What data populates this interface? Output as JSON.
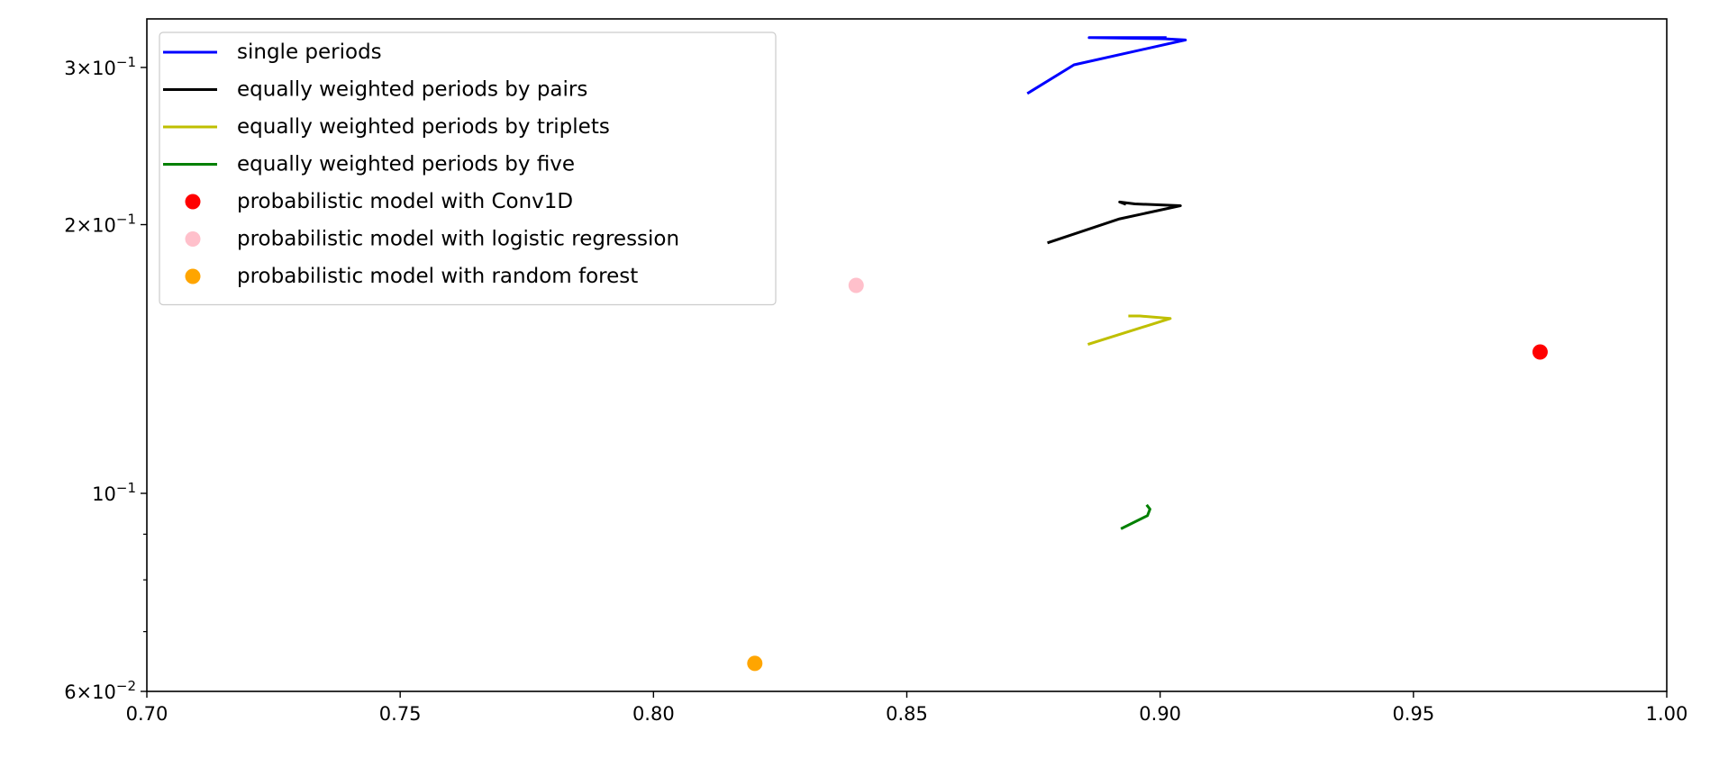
{
  "chart_data": {
    "type": "line",
    "title": "",
    "xlabel": "",
    "ylabel": "",
    "xlim": [
      0.7,
      1.0
    ],
    "ylim": [
      0.06,
      0.34
    ],
    "yscale": "log",
    "grid": false,
    "legend_position": "top-left",
    "x_ticks": [
      {
        "value": 0.7,
        "label": "0.70"
      },
      {
        "value": 0.75,
        "label": "0.75"
      },
      {
        "value": 0.8,
        "label": "0.80"
      },
      {
        "value": 0.85,
        "label": "0.85"
      },
      {
        "value": 0.9,
        "label": "0.90"
      },
      {
        "value": 0.95,
        "label": "0.95"
      },
      {
        "value": 1.0,
        "label": "1.00"
      }
    ],
    "y_ticks": [
      {
        "value": 0.06,
        "mantissa": "6",
        "exponent": "−2"
      },
      {
        "value": 0.1,
        "mantissa": "",
        "exponent": "−1"
      },
      {
        "value": 0.2,
        "mantissa": "2",
        "exponent": "−1"
      },
      {
        "value": 0.3,
        "mantissa": "3",
        "exponent": "−1"
      }
    ],
    "series": [
      {
        "name": "single periods",
        "kind": "line",
        "color": "#0000ff",
        "points": [
          [
            0.874,
            0.281
          ],
          [
            0.883,
            0.302
          ],
          [
            0.905,
            0.322
          ],
          [
            0.901,
            0.323
          ],
          [
            0.886,
            0.324
          ],
          [
            0.901,
            0.324
          ]
        ]
      },
      {
        "name": "equally weighted periods by pairs",
        "kind": "line",
        "color": "#000000",
        "points": [
          [
            0.878,
            0.191
          ],
          [
            0.892,
            0.203
          ],
          [
            0.904,
            0.21
          ],
          [
            0.895,
            0.211
          ],
          [
            0.892,
            0.212
          ],
          [
            0.893,
            0.211
          ]
        ]
      },
      {
        "name": "equally weighted periods by triplets",
        "kind": "line",
        "color": "#bfbf00",
        "points": [
          [
            0.886,
            0.147
          ],
          [
            0.902,
            0.157
          ],
          [
            0.896,
            0.158
          ],
          [
            0.894,
            0.158
          ]
        ]
      },
      {
        "name": "equally weighted periods by five",
        "kind": "line",
        "color": "#008000",
        "points": [
          [
            0.8925,
            0.0914
          ],
          [
            0.8975,
            0.0944
          ],
          [
            0.898,
            0.096
          ],
          [
            0.8975,
            0.0968
          ]
        ]
      },
      {
        "name": "probabilistic model with Conv1D",
        "kind": "scatter",
        "color": "#ff0000",
        "points": [
          [
            0.975,
            0.144
          ]
        ]
      },
      {
        "name": "probabilistic model with logistic regression",
        "kind": "scatter",
        "color": "#ffc0cb",
        "points": [
          [
            0.84,
            0.171
          ]
        ]
      },
      {
        "name": "probabilistic model with random forest",
        "kind": "scatter",
        "color": "#ffa500",
        "points": [
          [
            0.82,
            0.0645
          ]
        ]
      }
    ]
  }
}
